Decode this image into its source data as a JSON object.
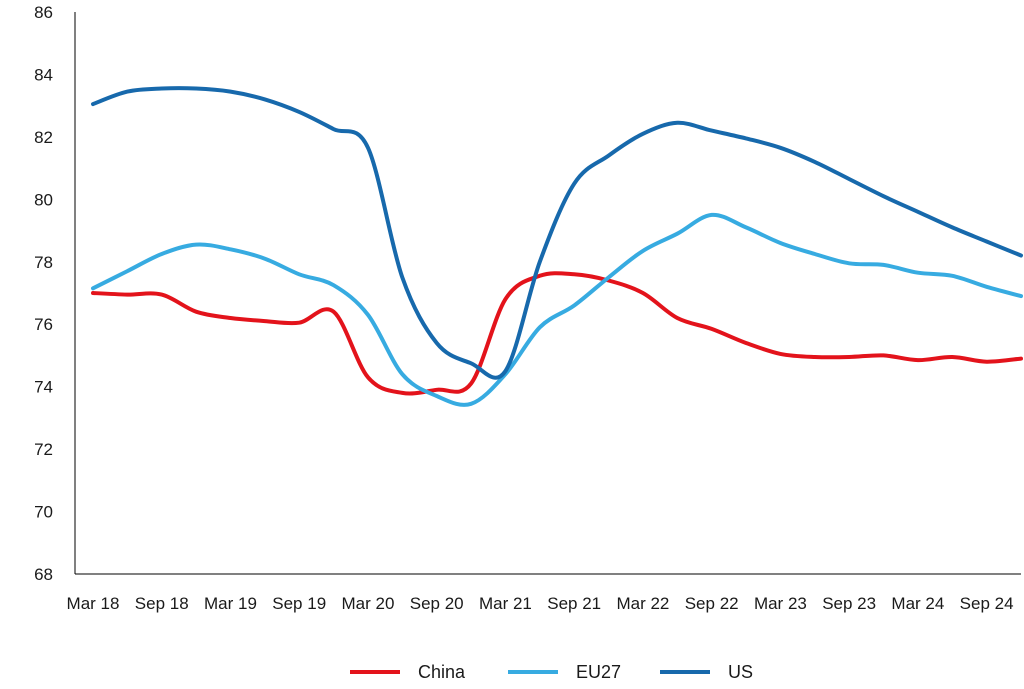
{
  "chart_data": {
    "type": "line",
    "x": [
      "Mar 18",
      "Jun 18",
      "Sep 18",
      "Dec 18",
      "Mar 19",
      "Jun 19",
      "Sep 19",
      "Dec 19",
      "Mar 20",
      "Jun 20",
      "Sep 20",
      "Dec 20",
      "Mar 21",
      "Jun 21",
      "Sep 21",
      "Dec 21",
      "Mar 22",
      "Jun 22",
      "Sep 22",
      "Dec 22",
      "Mar 23",
      "Jun 23",
      "Sep 23",
      "Dec 23",
      "Mar 24",
      "Jun 24",
      "Sep 24",
      "Dec 24"
    ],
    "x_tick_labels": [
      "Mar 18",
      "Sep 18",
      "Mar 19",
      "Sep 19",
      "Mar 20",
      "Sep 20",
      "Mar 21",
      "Sep 21",
      "Mar 22",
      "Sep 22",
      "Mar 23",
      "Sep 23",
      "Mar 24",
      "Sep 24"
    ],
    "series": [
      {
        "name": "China",
        "color": "#e3131b",
        "values": [
          77.0,
          76.95,
          76.95,
          76.4,
          76.2,
          76.1,
          76.05,
          76.4,
          74.3,
          73.8,
          73.9,
          74.1,
          76.8,
          77.55,
          77.6,
          77.4,
          77.0,
          76.2,
          75.85,
          75.4,
          75.05,
          74.95,
          74.95,
          75.0,
          74.85,
          74.95,
          74.8,
          74.9
        ]
      },
      {
        "name": "EU27",
        "color": "#37abe1",
        "values": [
          77.15,
          77.7,
          78.25,
          78.55,
          78.4,
          78.1,
          77.6,
          77.25,
          76.3,
          74.4,
          73.7,
          73.45,
          74.4,
          75.9,
          76.6,
          77.5,
          78.35,
          78.9,
          79.5,
          79.1,
          78.6,
          78.25,
          77.95,
          77.9,
          77.65,
          77.55,
          77.2,
          76.9
        ]
      },
      {
        "name": "US",
        "color": "#1769ac",
        "values": [
          83.05,
          83.45,
          83.55,
          83.55,
          83.45,
          83.2,
          82.8,
          82.25,
          81.65,
          77.5,
          75.4,
          74.75,
          74.5,
          78.0,
          80.5,
          81.4,
          82.1,
          82.45,
          82.2,
          81.95,
          81.65,
          81.2,
          80.65,
          80.1,
          79.6,
          79.1,
          78.65,
          78.2
        ]
      }
    ],
    "ylim": [
      68,
      86
    ],
    "y_ticks": [
      68,
      70,
      72,
      74,
      76,
      78,
      80,
      82,
      84,
      86
    ],
    "title": "",
    "xlabel": "",
    "ylabel": "",
    "grid": false,
    "legend_position": "bottom-center"
  }
}
